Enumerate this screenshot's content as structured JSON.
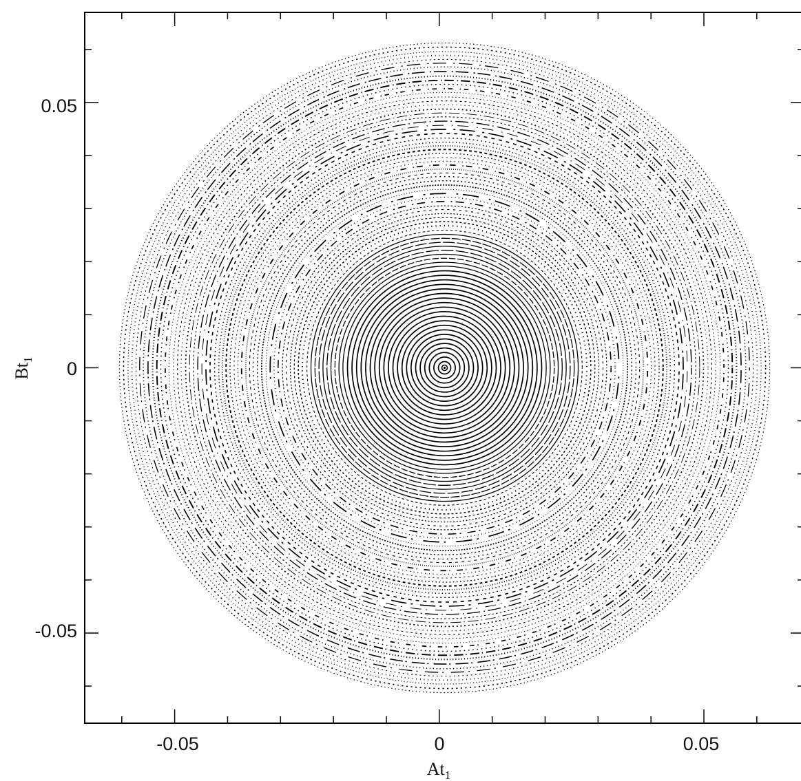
{
  "chart_data": {
    "type": "scatter",
    "title": "",
    "xlabel": "At",
    "xlabel_subscript": "1",
    "ylabel": "Bt",
    "ylabel_subscript": "1",
    "xlim": [
      -0.067,
      0.069
    ],
    "ylim": [
      -0.067,
      0.067
    ],
    "x_ticks": [
      -0.05,
      0,
      0.05
    ],
    "x_tick_labels": [
      "-0.05",
      "0",
      "0.05"
    ],
    "y_ticks": [
      -0.05,
      0,
      0.05
    ],
    "y_tick_labels": [
      "-0.05",
      "0",
      "0.05"
    ],
    "grid": false,
    "legend": "none",
    "center": [
      0.001,
      0.0
    ],
    "max_radius": 0.0615,
    "marker_color": "#000000",
    "pattern": "concentric invariant rings of points (Poincaré section); solid near the center, dotted and dashed toward the edge"
  }
}
